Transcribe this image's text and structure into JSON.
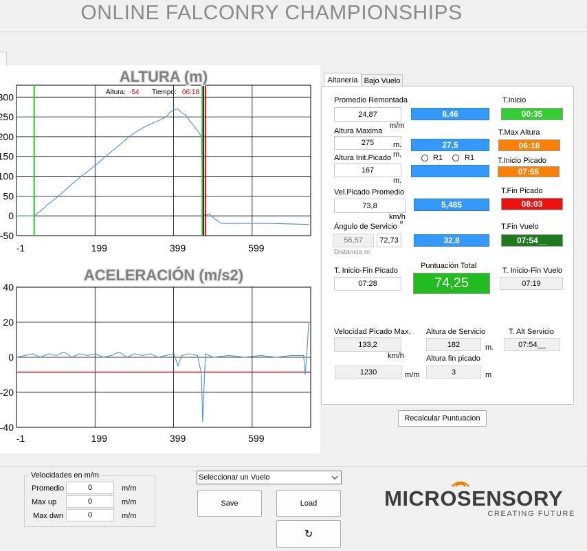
{
  "title": "ONLINE FALCONRY CHAMPIONSHIPS",
  "chart_data": [
    {
      "type": "line",
      "title": "ALTURA (m)",
      "readout": {
        "altura_label": "Altura:",
        "altura": "-54",
        "tiempo_label": "Tiempo:",
        "tiempo": "06:18"
      },
      "x": [
        -1,
        20,
        44,
        60,
        80,
        100,
        120,
        140,
        160,
        180,
        200,
        220,
        240,
        260,
        280,
        300,
        320,
        340,
        360,
        380,
        390,
        400,
        410,
        420,
        430,
        440,
        450,
        460,
        470,
        474,
        480,
        490,
        500,
        520,
        560,
        600,
        640,
        680,
        720,
        745
      ],
      "series": [
        {
          "color": "#4a8fdb",
          "values": [
            0,
            0,
            0,
            12,
            30,
            45,
            62,
            80,
            97,
            112,
            128,
            145,
            162,
            178,
            195,
            210,
            222,
            232,
            240,
            250,
            262,
            268,
            270,
            260,
            255,
            240,
            228,
            215,
            200,
            0,
            2,
            5,
            -5,
            -19,
            -19,
            -19,
            -19,
            -20,
            -21,
            -22
          ]
        }
      ],
      "markers": [
        {
          "x": 44,
          "color": "#22cc22"
        },
        {
          "x": 472,
          "color": "#22cc22"
        },
        {
          "x": 475,
          "color": "#333333"
        },
        {
          "x": 480,
          "color": "#dd0000"
        }
      ],
      "xlim": [
        -1,
        748
      ],
      "xticks": [
        -1,
        199,
        399,
        599
      ],
      "ylim": [
        -50,
        330
      ],
      "yticks": [
        -50,
        0,
        50,
        100,
        150,
        200,
        250,
        300
      ],
      "grid": true
    },
    {
      "type": "line",
      "title": "ACELERACIÓN (m/s2)",
      "x": [
        -1,
        20,
        40,
        60,
        80,
        100,
        120,
        140,
        160,
        180,
        200,
        220,
        240,
        260,
        280,
        300,
        320,
        340,
        360,
        380,
        400,
        410,
        420,
        440,
        460,
        470,
        473,
        476,
        480,
        500,
        540,
        580,
        620,
        660,
        700,
        730,
        734,
        738,
        743,
        746
      ],
      "series": [
        {
          "color": "#4a8fdb",
          "values": [
            0,
            1,
            2,
            0,
            2,
            1,
            3,
            0,
            2,
            1,
            2,
            0,
            1,
            3,
            0,
            2,
            1,
            2,
            0,
            1,
            2,
            -5,
            1,
            2,
            1,
            -10,
            -37,
            -20,
            2,
            0,
            1,
            0,
            1,
            0,
            1,
            1,
            -10,
            1,
            20,
            20
          ]
        }
      ],
      "threshold": -8.5,
      "threshold_color": "#dd0000",
      "xlim": [
        -1,
        748
      ],
      "xticks": [
        -1,
        199,
        399,
        599
      ],
      "ylim": [
        -40,
        40
      ],
      "yticks": [
        -40,
        -20,
        0,
        20,
        40
      ],
      "grid": true
    }
  ],
  "tabs": [
    "Altanería",
    "Bajo Vuelo"
  ],
  "panel": {
    "remontada": {
      "label": "Promedio Remontada",
      "value": "24,87",
      "unit": "m/m"
    },
    "altura_max": {
      "label": "Altura Maxima",
      "value": "275",
      "unit": "m."
    },
    "altura_init": {
      "label": "Altura Init.Picado",
      "value": "167",
      "unit": "m.",
      "unit2": "m."
    },
    "radios": [
      "R1",
      "R1"
    ],
    "vel_picado": {
      "label": "Vel.Picado Promedio",
      "value": "73,8",
      "unit": "km/h"
    },
    "angulo": {
      "label": "Ángulo de Servicio",
      "unit": "º",
      "values": [
        "56,57",
        "72,73"
      ],
      "note": "Distancia m"
    },
    "blue_boxes": [
      "8,46",
      "27,5",
      "5,485",
      "32,8"
    ],
    "times": [
      {
        "label": "T.Inicio",
        "value": "00:35"
      },
      {
        "label": "T.Max Altura",
        "value": "06:18"
      },
      {
        "label": "T.Inicio Picado",
        "value": "07:55"
      },
      {
        "label": "T.Fin Picado",
        "value": "08:03"
      },
      {
        "label": "T.Fin Vuelo",
        "value": "07:54__"
      }
    ],
    "inicio_fin_picado": {
      "label": "T. Inicio-Fin Picado",
      "value": "07:28"
    },
    "total": {
      "label": "Puntuación Total",
      "value": "74,25"
    },
    "inicio_fin_vuelo": {
      "label": "T. Inicio-Fin Vuelo",
      "value": "07:19"
    },
    "vel_max": {
      "label": "Velocidad Picado Max.",
      "value": "133,2",
      "unit": "km/h",
      "value2": "1230",
      "unit2": "m/m"
    },
    "alt_servicio": {
      "label": "Altura de Servicio",
      "value": "182",
      "unit": "m."
    },
    "alt_fin": {
      "label": "Altura fin picado",
      "value": "3",
      "unit": "m"
    },
    "t_alt_servicio": {
      "label": "T. Alt Servicio",
      "value": "07:54__"
    },
    "recalc": "Recalcular Puntuacion"
  },
  "velocidades": {
    "legend": "Velocidades en m/m",
    "rows": [
      {
        "label": "Promedio",
        "value": "0",
        "unit": "m/m"
      },
      {
        "label": "Max up",
        "value": "0",
        "unit": "m/m"
      },
      {
        "label": "Max dwn",
        "value": "0",
        "unit": "m/m"
      }
    ]
  },
  "controls": {
    "select": "Seleccionar un Vuelo",
    "save": "Save",
    "load": "Load",
    "refresh": "↻"
  },
  "logo": {
    "name": "MICROSENSORY",
    "tagline": "CREATING FUTURE"
  }
}
